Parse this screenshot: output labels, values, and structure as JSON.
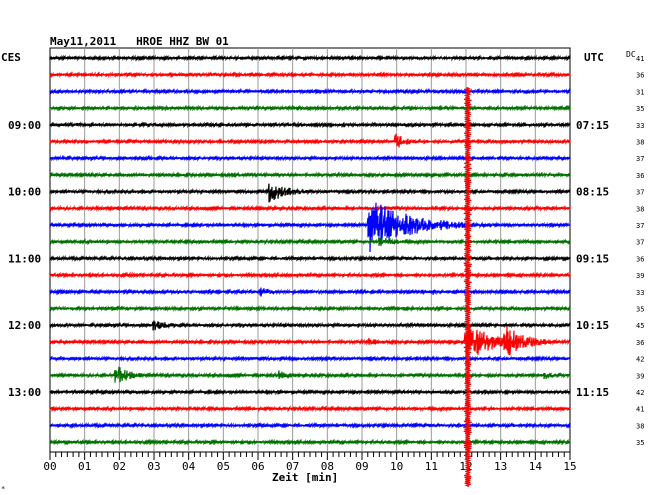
{
  "header": {
    "title": "May11,2011   HROE HHZ BW 01",
    "left_tz": "CES",
    "right_tz": "UTC",
    "dc_label": "DC",
    "footer_mark": "*"
  },
  "chart_data": {
    "type": "line",
    "title": "May11,2011   HROE HHZ BW 01",
    "xlabel": "Zeit [min]",
    "x_ticks": [
      "00",
      "01",
      "02",
      "03",
      "04",
      "05",
      "06",
      "07",
      "08",
      "09",
      "10",
      "11",
      "12",
      "13",
      "14",
      "15"
    ],
    "xlim": [
      0,
      15
    ],
    "grid": true,
    "trace_colors": [
      "#000000",
      "#ff0000",
      "#0000ff",
      "#007000"
    ],
    "rows": 24,
    "left_time_labels": [
      {
        "row": 4,
        "text": "09:00"
      },
      {
        "row": 8,
        "text": "10:00"
      },
      {
        "row": 12,
        "text": "11:00"
      },
      {
        "row": 16,
        "text": "12:00"
      },
      {
        "row": 20,
        "text": "13:00"
      }
    ],
    "right_time_labels": [
      {
        "row": 4,
        "text": "07:15"
      },
      {
        "row": 8,
        "text": "08:15"
      },
      {
        "row": 12,
        "text": "09:15"
      },
      {
        "row": 16,
        "text": "10:15"
      },
      {
        "row": 20,
        "text": "11:15"
      }
    ],
    "dc_values": [
      "41",
      "36",
      "31",
      "35",
      "33",
      "38",
      "37",
      "36",
      "37",
      "38",
      "37",
      "37",
      "36",
      "39",
      "33",
      "35",
      "45",
      "36",
      "42",
      "39",
      "42",
      "41",
      "38",
      "35"
    ],
    "events": [
      {
        "row": 0,
        "t": 1.1,
        "amp": 2,
        "dur": 1.0
      },
      {
        "row": 4,
        "t": 0.8,
        "amp": 2,
        "dur": 0.8
      },
      {
        "row": 5,
        "t": 10.0,
        "amp": 8,
        "dur": 1.2
      },
      {
        "row": 6,
        "t": 0.4,
        "amp": 3,
        "dur": 0.5
      },
      {
        "row": 7,
        "t": 5.3,
        "amp": 3,
        "dur": 1.2
      },
      {
        "row": 8,
        "t": 6.35,
        "amp": 11,
        "dur": 1.8
      },
      {
        "row": 9,
        "t": 2.0,
        "amp": 2,
        "dur": 1.0
      },
      {
        "row": 10,
        "t": 9.2,
        "amp": 28,
        "dur": 4.0
      },
      {
        "row": 11,
        "t": 9.5,
        "amp": 5,
        "dur": 2.0
      },
      {
        "row": 13,
        "t": 2.3,
        "amp": 2,
        "dur": 0.6
      },
      {
        "row": 14,
        "t": 6.1,
        "amp": 5,
        "dur": 1.2
      },
      {
        "row": 14,
        "t": 11.0,
        "amp": 4,
        "dur": 0.6
      },
      {
        "row": 15,
        "t": 10.2,
        "amp": 2,
        "dur": 0.8
      },
      {
        "row": 16,
        "t": 3.0,
        "amp": 6,
        "dur": 1.5
      },
      {
        "row": 17,
        "t": 9.2,
        "amp": 5,
        "dur": 0.8
      },
      {
        "row": 17,
        "t": 12.0,
        "amp": 20,
        "dur": 2.5
      },
      {
        "row": 17,
        "t": 13.1,
        "amp": 18,
        "dur": 2.0
      },
      {
        "row": 19,
        "t": 1.9,
        "amp": 11,
        "dur": 1.4
      },
      {
        "row": 19,
        "t": 6.6,
        "amp": 5,
        "dur": 1.6
      },
      {
        "row": 19,
        "t": 14.3,
        "amp": 4,
        "dur": 0.8
      },
      {
        "row": 20,
        "t": 0.1,
        "amp": 2,
        "dur": 0.6
      }
    ],
    "major_spike": {
      "t": 12.05,
      "row_start": 2,
      "row_end": 24
    }
  }
}
